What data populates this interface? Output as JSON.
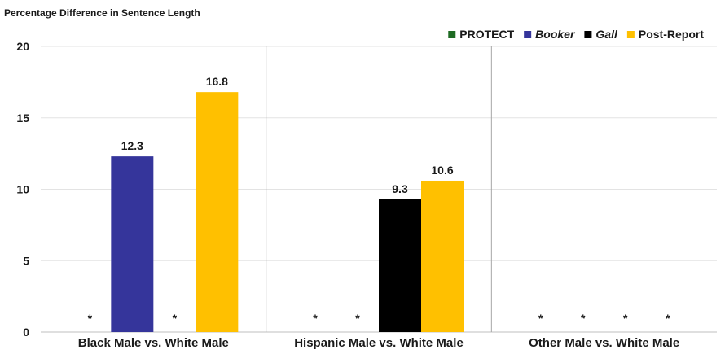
{
  "chart_data": {
    "type": "bar",
    "title": "",
    "ylabel": "Percentage Difference in Sentence Length",
    "xlabel": "",
    "ylim": [
      0,
      20
    ],
    "yticks": [
      "0",
      "5",
      "10",
      "15",
      "20"
    ],
    "grid": true,
    "legend_position": "top-right",
    "categories": [
      "Black Male vs. White Male",
      "Hispanic Male vs. White Male",
      "Other Male vs. White Male"
    ],
    "series": [
      {
        "name": "PROTECT",
        "color": "#1e6b23",
        "italic": false,
        "values": [
          null,
          null,
          null
        ],
        "labels": [
          "*",
          "*",
          "*"
        ]
      },
      {
        "name": "Booker",
        "color": "#35359b",
        "italic": true,
        "values": [
          12.3,
          null,
          null
        ],
        "labels": [
          "12.3",
          "*",
          "*"
        ]
      },
      {
        "name": "Gall",
        "color": "#000000",
        "italic": true,
        "values": [
          null,
          9.3,
          null
        ],
        "labels": [
          "*",
          "9.3",
          "*"
        ]
      },
      {
        "name": "Post-Report",
        "color": "#ffc000",
        "italic": false,
        "values": [
          16.8,
          10.6,
          null
        ],
        "labels": [
          "16.8",
          "10.6",
          "*"
        ]
      }
    ]
  }
}
